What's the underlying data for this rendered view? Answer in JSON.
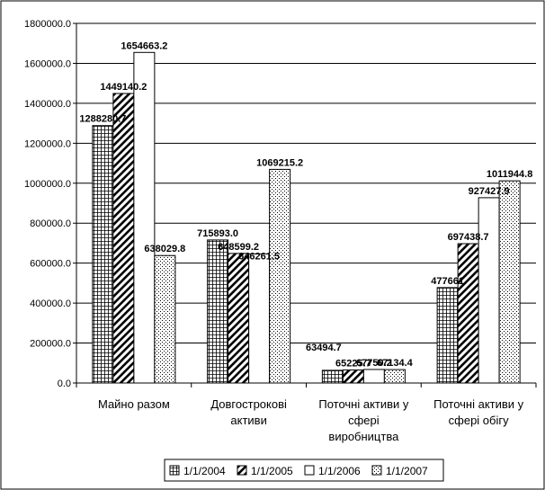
{
  "chart_data": {
    "type": "bar",
    "categories": [
      [
        "Майно разом"
      ],
      [
        "Довгострокові",
        "активи"
      ],
      [
        "Поточні активи у",
        "сфері",
        "виробництва"
      ],
      [
        "Поточні активи у",
        "сфері обігу"
      ]
    ],
    "series": [
      {
        "name": "1/1/2004",
        "pattern": "grid",
        "values": [
          1288280.7,
          715893.0,
          63494.7,
          477661.0
        ],
        "labels": [
          "1288280.7",
          "715893.0",
          "63494.7",
          "477661"
        ]
      },
      {
        "name": "1/1/2005",
        "pattern": "diagonal",
        "values": [
          1449140.2,
          648599.2,
          65225.7,
          697438.7
        ],
        "labels": [
          "1449140.2",
          "648599.2",
          "65225.7",
          "697438.7"
        ]
      },
      {
        "name": "1/1/2006",
        "pattern": "blank",
        "values": [
          1654663.2,
          646261.5,
          67750.2,
          927427.9
        ],
        "labels": [
          "1654663.2",
          "646261.5",
          "67750.2",
          "927427.9"
        ]
      },
      {
        "name": "1/1/2007",
        "pattern": "dots",
        "values": [
          638029.8,
          1069215.2,
          67134.4,
          1011944.8
        ],
        "labels": [
          "638029.8",
          "1069215.2",
          "67134.4",
          "1011944.8"
        ]
      }
    ],
    "yticks": [
      "0.0",
      "200000.0",
      "400000.0",
      "600000.0",
      "800000.0",
      "1000000.0",
      "1200000.0",
      "1400000.0",
      "1600000.0",
      "1800000.0"
    ],
    "ylim": [
      0,
      1800000
    ],
    "grid": true,
    "legend": "bottom",
    "colors": {
      "bar_fill": "#ffffff",
      "bar_stroke": "#000000",
      "grid": "#000000",
      "pattern": "#000000"
    }
  }
}
